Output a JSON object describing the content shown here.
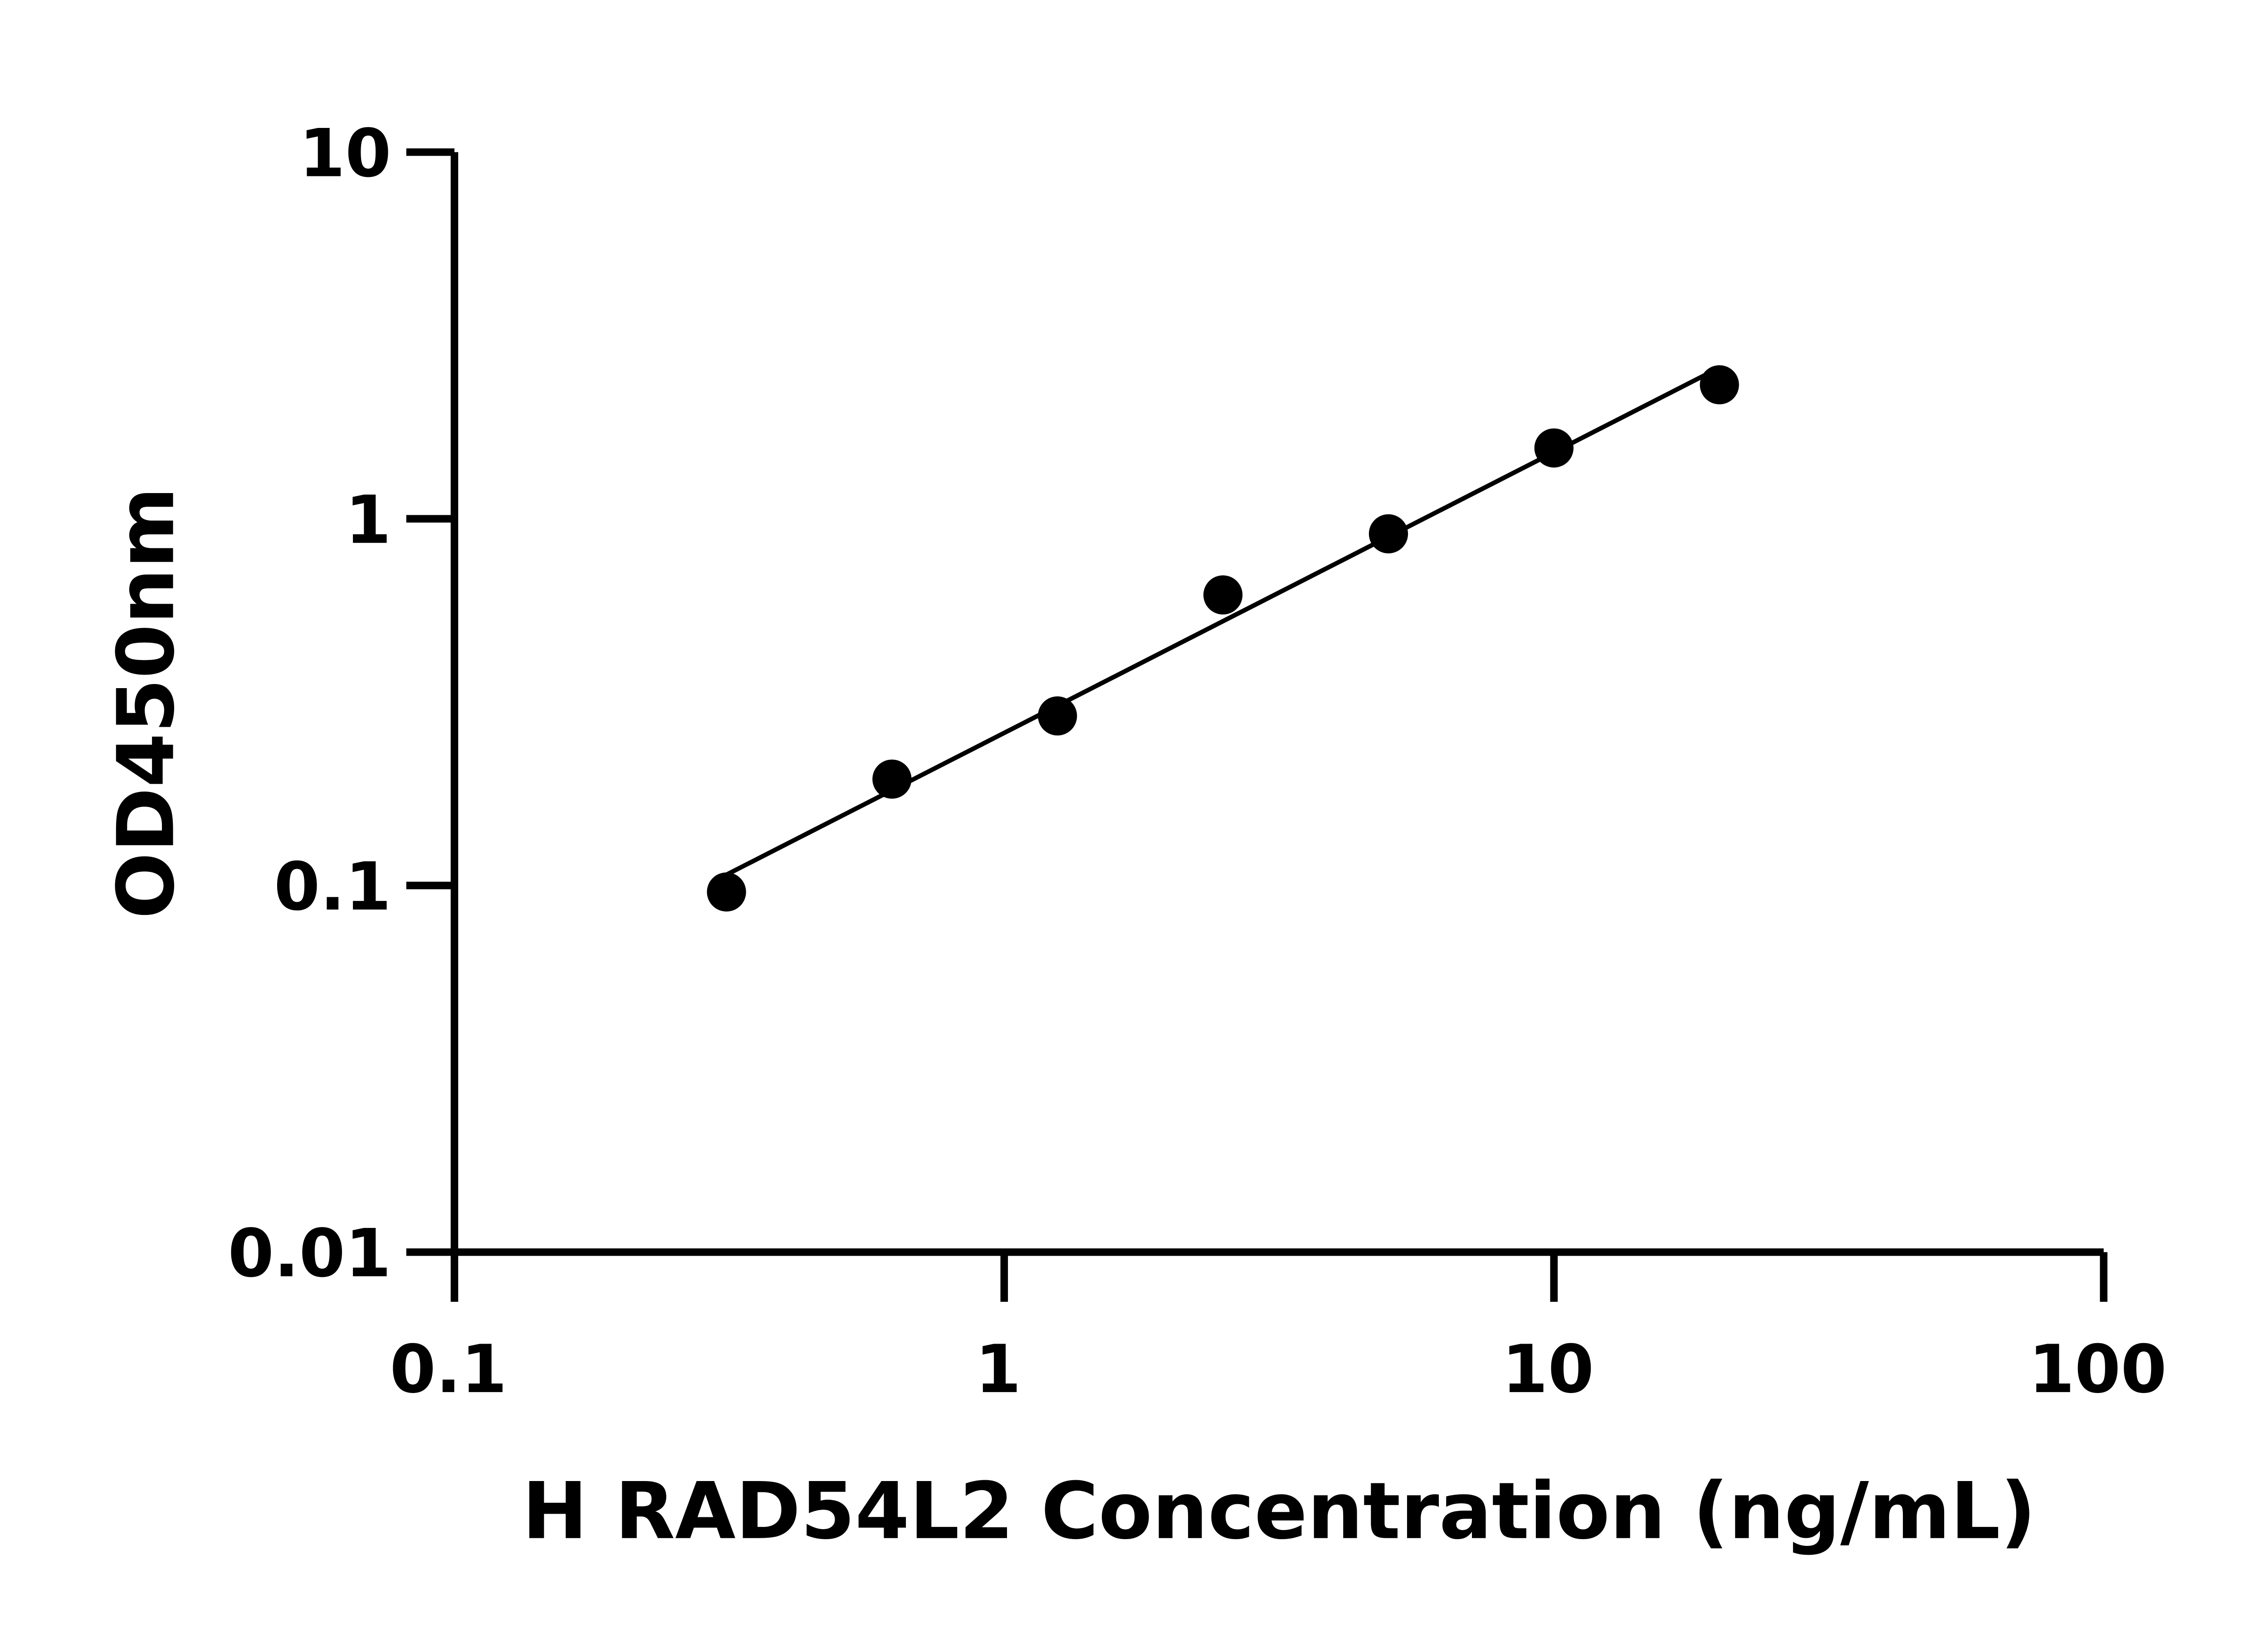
{
  "chart_data": {
    "type": "scatter",
    "title": "",
    "xlabel": "H RAD54L2 Concentration (ng/mL)",
    "ylabel": "OD450nm",
    "xscale": "log",
    "yscale": "log",
    "xlim": [
      0.1,
      100
    ],
    "ylim": [
      0.01,
      10
    ],
    "xticks": [
      "0.1",
      "1",
      "10",
      "100"
    ],
    "yticks": [
      "0.01",
      "0.1",
      "1",
      "10"
    ],
    "grid": false,
    "fit_line": true,
    "series": [
      {
        "x": [
          0.3125,
          0.625,
          1.25,
          2.5,
          5,
          10,
          20
        ],
        "y": [
          0.096,
          0.195,
          0.29,
          0.62,
          0.91,
          1.56,
          2.32
        ]
      }
    ],
    "colors": {
      "marker": "#000000",
      "line": "#000000",
      "axis": "#000000"
    }
  }
}
